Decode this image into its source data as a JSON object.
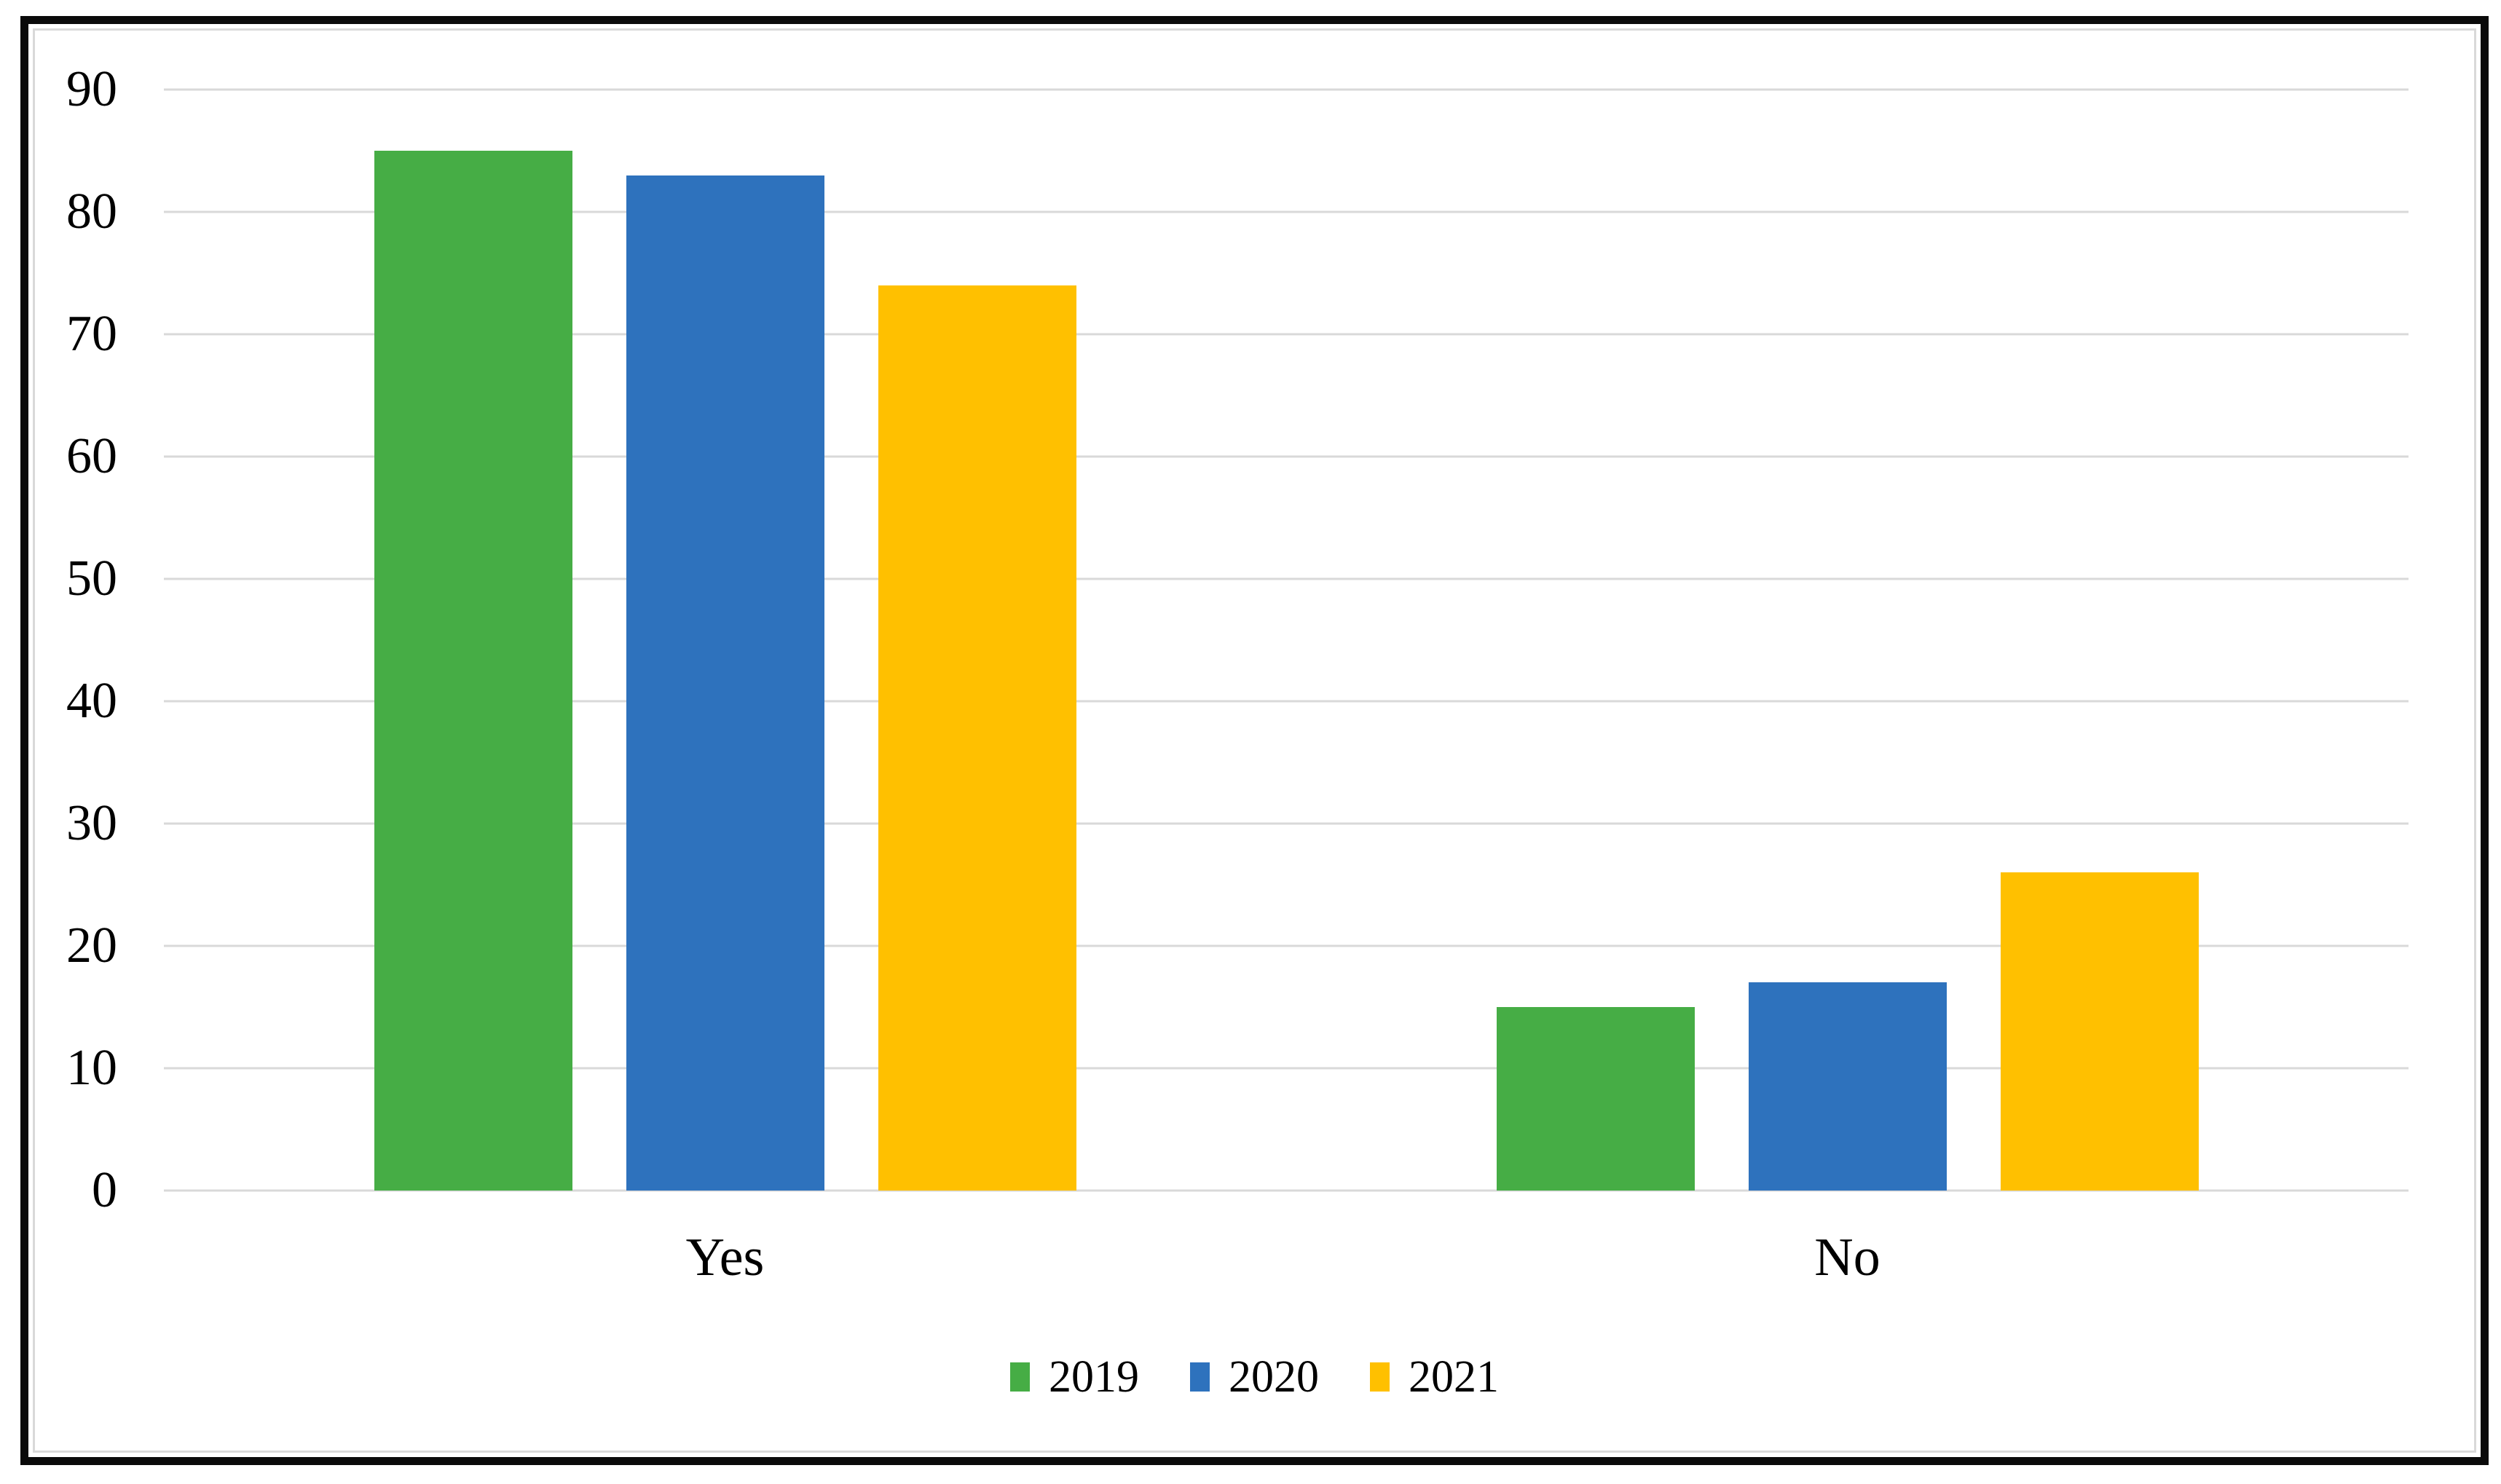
{
  "chart_data": {
    "type": "bar",
    "title": "",
    "categories": [
      "Yes",
      "No"
    ],
    "series": [
      {
        "name": "2019",
        "color": "#46AD45",
        "values": [
          85,
          15
        ]
      },
      {
        "name": "2020",
        "color": "#2E72BD",
        "values": [
          83,
          17
        ]
      },
      {
        "name": "2021",
        "color": "#FFC000",
        "values": [
          74,
          26
        ]
      }
    ],
    "ylim": [
      0,
      90
    ],
    "yticks": [
      90,
      80,
      70,
      60,
      50,
      40,
      30,
      20,
      10,
      0
    ],
    "grid": true,
    "legend_position": "bottom",
    "colors": {
      "gridline": "#d9d9d9",
      "chart_border": "#d9d9d9",
      "figure_border": "#0a0a0a",
      "plot_background": "#ffffff",
      "text": "#000000"
    }
  }
}
